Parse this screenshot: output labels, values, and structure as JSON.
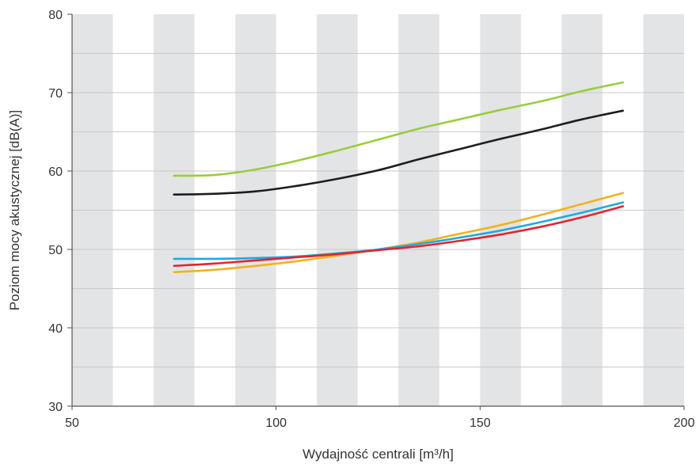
{
  "chart_data": {
    "type": "line",
    "title": "",
    "xlabel": "Wydajność centrali [m³/h]",
    "ylabel": "Poziom mocy akustycznej [dB(A)]",
    "xlim": [
      50,
      200
    ],
    "ylim": [
      30,
      80
    ],
    "x_ticks": [
      50,
      100,
      150,
      200
    ],
    "y_ticks": [
      30,
      40,
      50,
      60,
      70,
      80
    ],
    "grid": "horizontal lines every 5 dB, alternating vertical bands every 10 m³/h",
    "band_color": "#e3e4e6",
    "series": [
      {
        "color": "#9acd3c",
        "x": [
          75,
          85,
          95,
          105,
          115,
          125,
          135,
          145,
          155,
          165,
          175,
          185
        ],
        "values": [
          59.4,
          59.5,
          60.2,
          61.3,
          62.6,
          64.0,
          65.4,
          66.6,
          67.8,
          68.9,
          70.2,
          71.3
        ]
      },
      {
        "color": "#1e1e1e",
        "x": [
          75,
          85,
          95,
          105,
          115,
          125,
          135,
          145,
          155,
          165,
          175,
          185
        ],
        "values": [
          57.0,
          57.1,
          57.4,
          58.1,
          59.0,
          60.1,
          61.5,
          62.8,
          64.1,
          65.3,
          66.6,
          67.7
        ]
      },
      {
        "color": "#f2b21b",
        "x": [
          75,
          85,
          95,
          105,
          115,
          125,
          135,
          145,
          155,
          165,
          175,
          185
        ],
        "values": [
          47.1,
          47.4,
          47.9,
          48.5,
          49.2,
          50.0,
          50.9,
          52.0,
          53.1,
          54.4,
          55.8,
          57.2
        ]
      },
      {
        "color": "#1da9e1",
        "x": [
          75,
          85,
          95,
          105,
          115,
          125,
          135,
          145,
          155,
          165,
          175,
          185
        ],
        "values": [
          48.8,
          48.8,
          48.9,
          49.1,
          49.5,
          50.0,
          50.7,
          51.5,
          52.4,
          53.5,
          54.7,
          56.0
        ]
      },
      {
        "color": "#e5232e",
        "x": [
          75,
          85,
          95,
          105,
          115,
          125,
          135,
          145,
          155,
          165,
          175,
          185
        ],
        "values": [
          47.9,
          48.2,
          48.6,
          49.0,
          49.4,
          49.9,
          50.4,
          51.1,
          51.9,
          52.9,
          54.1,
          55.5
        ]
      }
    ]
  }
}
